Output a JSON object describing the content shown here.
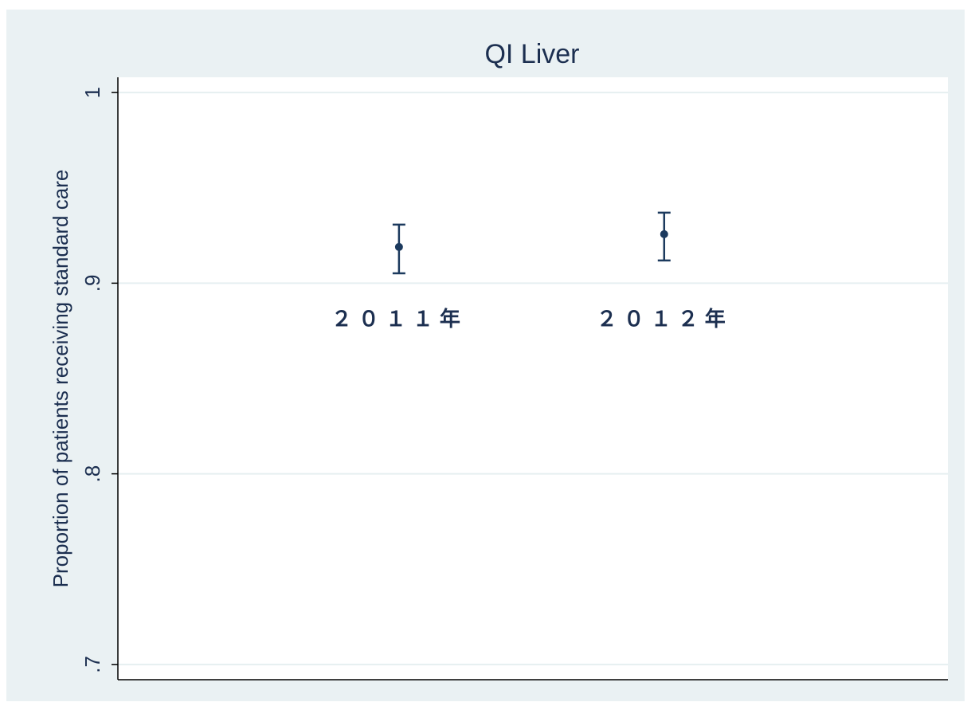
{
  "chart_data": {
    "type": "errorbar",
    "title": "QI Liver",
    "y_label": "Proportion of patients receiving standard care",
    "x": [
      2011,
      2012
    ],
    "xlim": [
      2009.94,
      2013.07
    ],
    "point_labels": [
      "２０１１年",
      "２０１２年"
    ],
    "series": [
      {
        "color": "#1c3a5e",
        "values": [
          0.919,
          0.9257
        ],
        "lower": [
          0.9052,
          0.9119
        ],
        "upper": [
          0.9307,
          0.937
        ]
      }
    ],
    "ylim": [
      0.692,
      1.008
    ],
    "yticks": [
      {
        "value": 0.7,
        "label": ".7"
      },
      {
        "value": 0.8,
        "label": ".8"
      },
      {
        "value": 0.9,
        "label": ".9"
      },
      1
    ],
    "grid": true
  }
}
